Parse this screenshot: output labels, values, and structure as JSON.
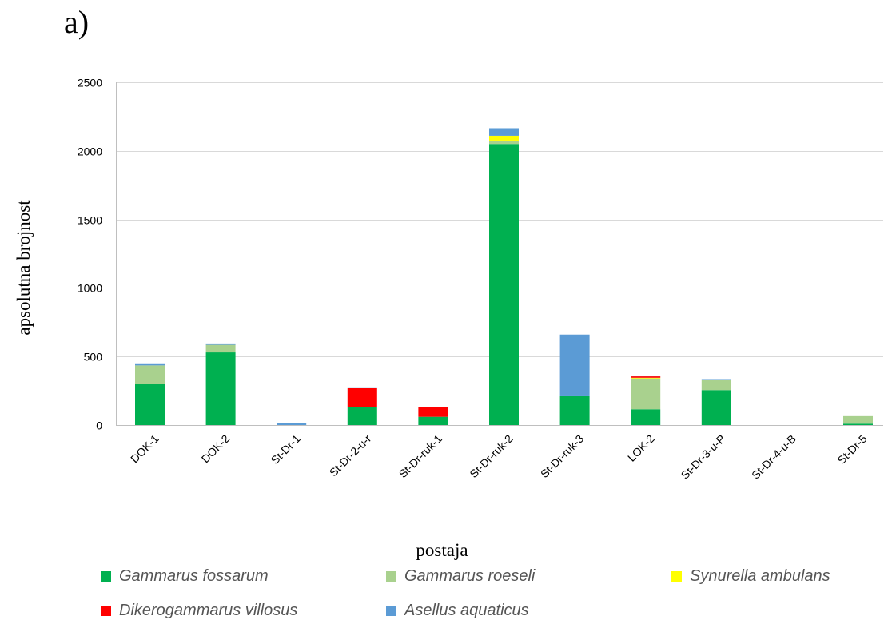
{
  "panel_label": "a)",
  "colors": {
    "Gammarus fossarum": "#00b050",
    "Gammarus roeseli": "#a9d18e",
    "Synurella ambulans": "#ffff00",
    "Dikerogammarus villosus": "#ff0000",
    "Asellus aquaticus": "#5b9bd5"
  },
  "chart_data": {
    "type": "bar",
    "stacked": true,
    "xlabel": "postaja",
    "ylabel": "apsolutna brojnost",
    "ylim": [
      0,
      2500
    ],
    "yticks": [
      "0",
      "500",
      "1000",
      "1500",
      "2000",
      "2500"
    ],
    "grid": true,
    "legend_position": "bottom",
    "categories": [
      "DOK-1",
      "DOK-2",
      "St-Dr-1",
      "St-Dr-2-u-r",
      "St-Dr-ruk-1",
      "St-Dr-ruk-2",
      "St-Dr-ruk-3",
      "LOK-2",
      "St-Dr-3-u-P",
      "St-Dr-4-u-B",
      "St-Dr-5"
    ],
    "series": [
      {
        "name": "Gammarus fossarum",
        "values": [
          300,
          530,
          0,
          130,
          60,
          2050,
          210,
          115,
          255,
          0,
          10
        ]
      },
      {
        "name": "Gammarus roeseli",
        "values": [
          135,
          55,
          0,
          0,
          0,
          25,
          0,
          225,
          75,
          0,
          55
        ]
      },
      {
        "name": "Synurella ambulans",
        "values": [
          0,
          0,
          0,
          0,
          0,
          35,
          0,
          5,
          0,
          0,
          0
        ]
      },
      {
        "name": "Dikerogammarus villosus",
        "values": [
          0,
          0,
          0,
          140,
          70,
          0,
          0,
          10,
          0,
          0,
          0
        ]
      },
      {
        "name": "Asellus aquaticus",
        "values": [
          15,
          10,
          15,
          5,
          0,
          55,
          450,
          5,
          5,
          0,
          0
        ]
      }
    ]
  }
}
